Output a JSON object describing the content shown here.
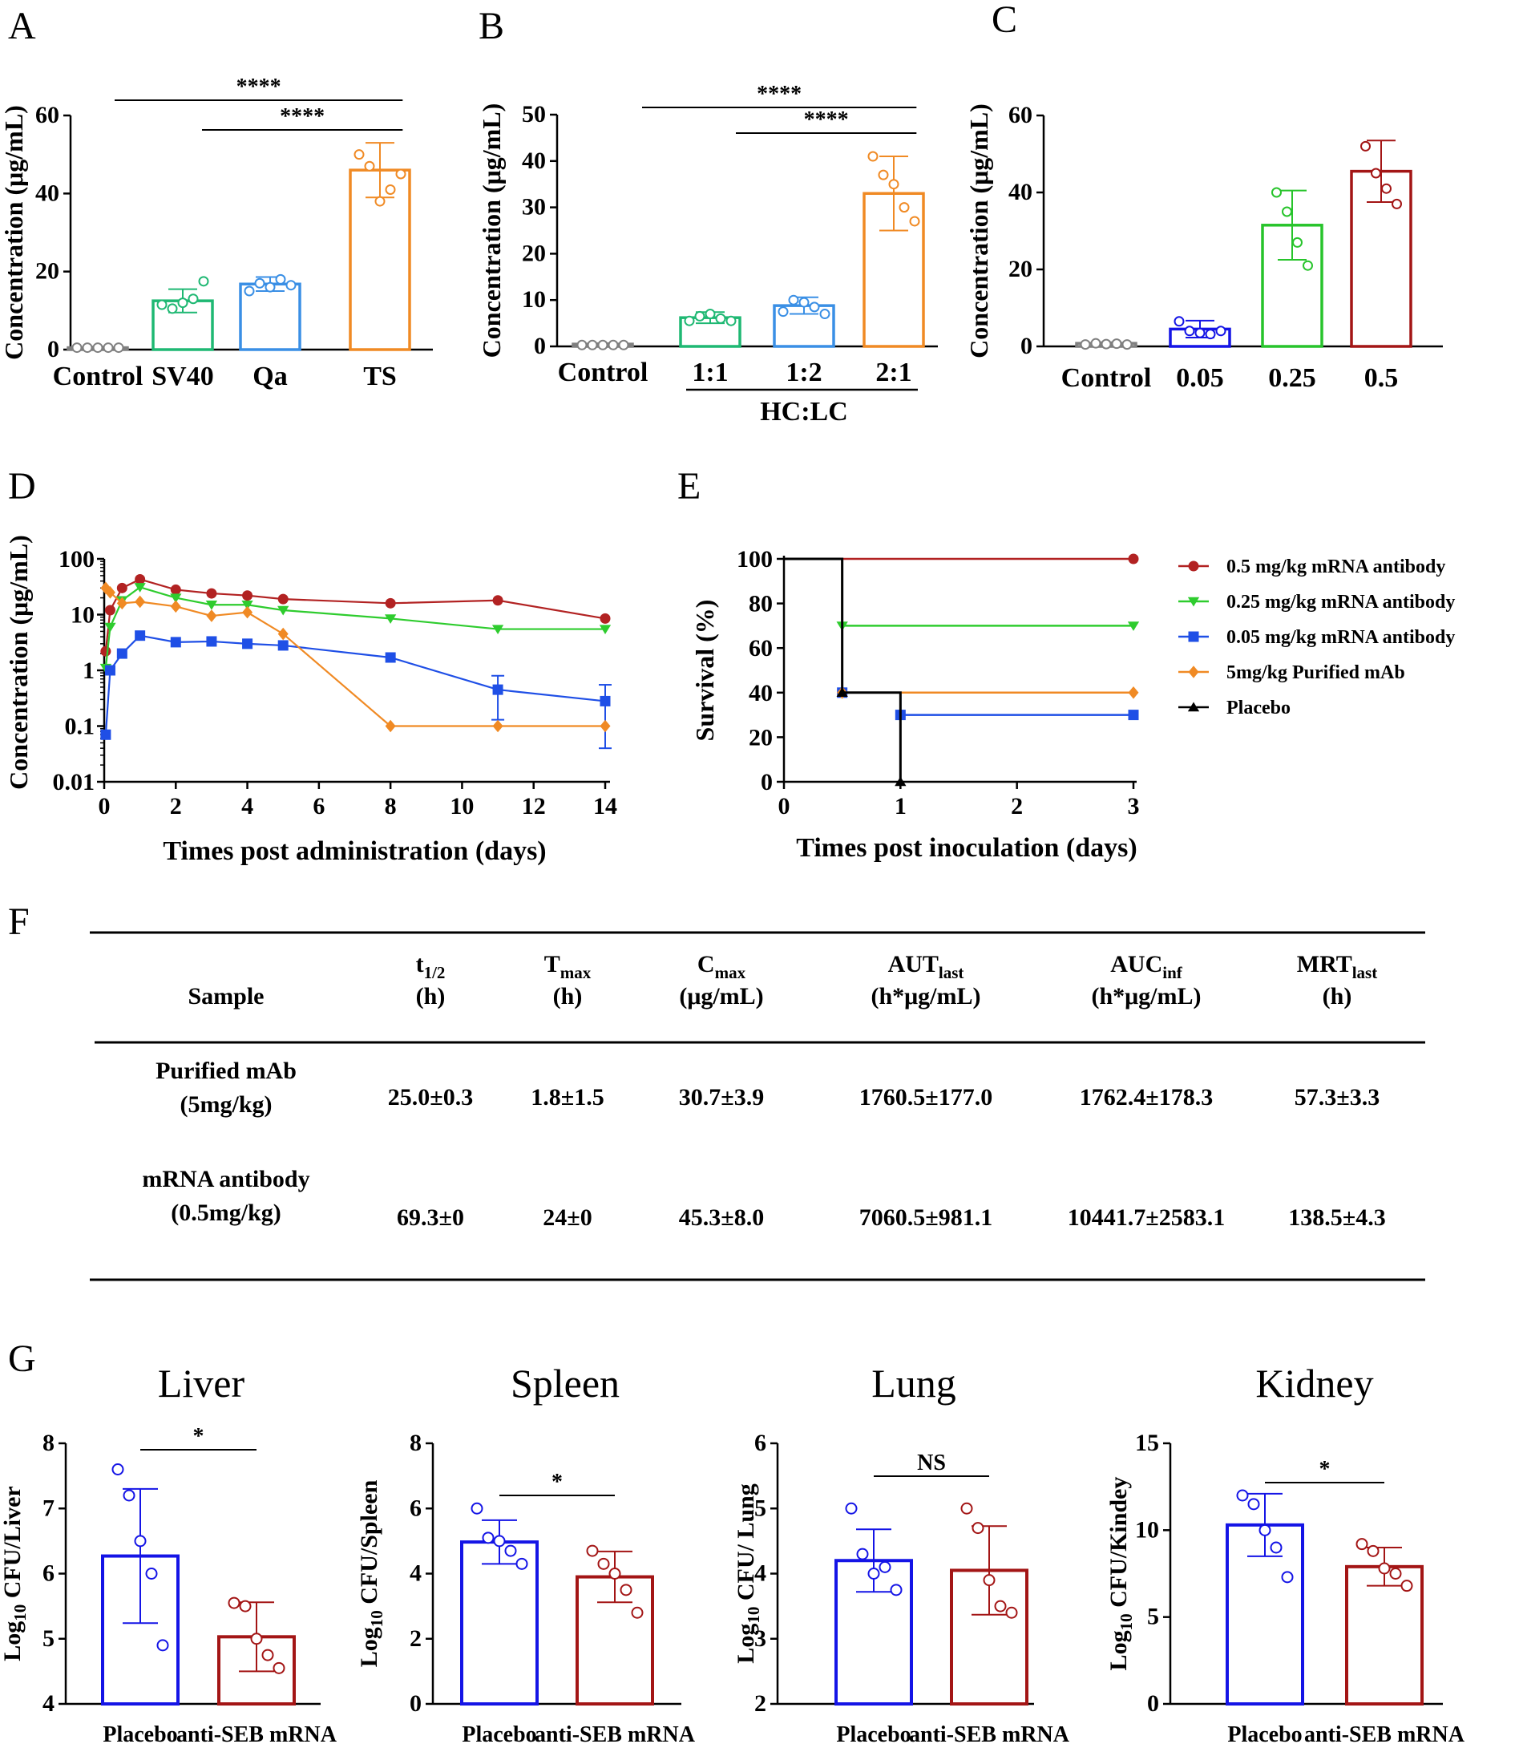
{
  "panel_letters": [
    "A",
    "B",
    "C",
    "D",
    "E",
    "F",
    "G"
  ],
  "colors": {
    "axis": "#000000",
    "gray": "#7f7f7f",
    "green": "#1fb873",
    "blue": "#3a8fe5",
    "orange": "#f08a24",
    "blue_dark": "#1414e6",
    "green_bright": "#27c42b",
    "red_dark": "#a31515",
    "red_line": "#b22222",
    "green_line": "#2ecc2e",
    "blue_line": "#1f4fe6",
    "black": "#000000"
  },
  "chart_data": [
    {
      "id": "A",
      "type": "bar",
      "ylabel": "Concentration (μg/mL)",
      "ylim": [
        0,
        60
      ],
      "yticks": [
        0,
        20,
        40,
        60
      ],
      "categories": [
        "Control",
        "SV40",
        "Qa",
        "TS"
      ],
      "values": [
        0.5,
        12.5,
        16.8,
        46
      ],
      "errors": [
        0.3,
        3,
        1.8,
        7
      ],
      "points": [
        [
          0.5,
          0.5,
          0.5,
          0.5,
          0.5
        ],
        [
          11.5,
          10.5,
          12,
          13,
          17.5
        ],
        [
          15,
          17,
          16,
          18,
          16.5
        ],
        [
          50,
          47,
          38,
          41,
          45
        ]
      ],
      "colors": [
        "#7f7f7f",
        "#1fb873",
        "#3a8fe5",
        "#f08a24"
      ],
      "sig": [
        {
          "from": 1,
          "to": 3,
          "label": "****"
        },
        {
          "from": 2,
          "to": 3,
          "label": "****"
        }
      ]
    },
    {
      "id": "B",
      "type": "bar",
      "ylabel": "Concentration (μg/mL)",
      "ylim": [
        0,
        50
      ],
      "yticks": [
        0,
        10,
        20,
        30,
        40,
        50
      ],
      "categories": [
        "Control",
        "1:1",
        "1:2",
        "2:1"
      ],
      "values": [
        0.5,
        6.2,
        8.8,
        33
      ],
      "errors": [
        0.2,
        1.2,
        1.8,
        8
      ],
      "points": [
        [
          0.3,
          0.3,
          0.3,
          0.3,
          0.3
        ],
        [
          5.5,
          6.5,
          7,
          6,
          5.5
        ],
        [
          7.5,
          10,
          9.5,
          8.5,
          7
        ],
        [
          41,
          37,
          35,
          30,
          27
        ]
      ],
      "colors": [
        "#7f7f7f",
        "#1fb873",
        "#3a8fe5",
        "#f08a24"
      ],
      "group_label": "HC:LC",
      "sig": [
        {
          "from": 1,
          "to": 3,
          "label": "****"
        },
        {
          "from": 2,
          "to": 3,
          "label": "****"
        }
      ]
    },
    {
      "id": "C",
      "type": "bar",
      "ylabel": "Concentration (μg/mL)",
      "ylim": [
        0,
        60
      ],
      "yticks": [
        0,
        20,
        40,
        60
      ],
      "categories": [
        "Control",
        "0.05",
        "0.25",
        "0.5"
      ],
      "values": [
        0.8,
        4.5,
        31.5,
        45.5
      ],
      "errors": [
        0.3,
        2.2,
        9,
        8
      ],
      "points": [
        [
          0.5,
          0.8,
          0.6,
          0.7,
          0.5
        ],
        [
          6.5,
          4,
          3.5,
          3.2,
          4
        ],
        [
          40,
          35,
          27,
          21
        ],
        [
          52,
          45,
          41,
          37
        ]
      ],
      "colors": [
        "#7f7f7f",
        "#1414e6",
        "#27c42b",
        "#a31515"
      ]
    },
    {
      "id": "D",
      "type": "line",
      "yscale": "log",
      "xlabel": "Times post administration (days)",
      "ylabel": "Concentration (μg/mL)",
      "xlim": [
        0,
        14
      ],
      "xticks": [
        0,
        2,
        4,
        6,
        8,
        10,
        12,
        14
      ],
      "ylim": [
        0.01,
        100
      ],
      "yticks": [
        0.01,
        0.1,
        1,
        10,
        100
      ],
      "ytick_labels": [
        "0.01",
        "0.1",
        "1",
        "10",
        "100"
      ],
      "series": [
        {
          "name": "0.5 mg/kg mRNA antibody",
          "color": "#b22222",
          "marker": "circle",
          "x": [
            0.042,
            0.167,
            0.5,
            1,
            2,
            3,
            4,
            5,
            8,
            11,
            14
          ],
          "y": [
            2.2,
            12,
            30,
            43,
            28,
            24,
            22,
            19,
            16,
            18,
            8.5
          ]
        },
        {
          "name": "0.25 mg/kg mRNA antibody",
          "color": "#2ecc2e",
          "marker": "triangle-down",
          "x": [
            0.042,
            0.167,
            0.5,
            1,
            2,
            3,
            4,
            5,
            8,
            11,
            14
          ],
          "y": [
            1.1,
            6,
            18,
            31,
            20,
            15,
            15,
            12,
            8.5,
            5.5,
            5.5
          ]
        },
        {
          "name": "0.05 mg/kg mRNA antibody",
          "color": "#1f4fe6",
          "marker": "square",
          "x": [
            0.042,
            0.167,
            0.5,
            1,
            2,
            3,
            4,
            5,
            8,
            11,
            14
          ],
          "y": [
            0.07,
            1,
            2,
            4.2,
            3.2,
            3.3,
            3,
            2.8,
            1.7,
            0.45,
            0.28
          ]
        },
        {
          "name": "5mg/kg Purified mAb",
          "color": "#f08a24",
          "marker": "diamond",
          "x": [
            0.042,
            0.167,
            0.5,
            1,
            2,
            3,
            4,
            5,
            8,
            11,
            14
          ],
          "y": [
            30,
            25,
            16,
            17,
            14,
            9.5,
            11,
            4.5,
            0.1,
            0.1,
            0.1
          ]
        }
      ]
    },
    {
      "id": "E",
      "type": "line",
      "subtype": "step",
      "xlabel": "Times post inoculation (days)",
      "ylabel": "Survival (%)",
      "xlim": [
        0,
        3
      ],
      "xticks": [
        0,
        1,
        2,
        3
      ],
      "ylim": [
        0,
        100
      ],
      "yticks": [
        0,
        20,
        40,
        60,
        80,
        100
      ],
      "series": [
        {
          "name": "0.5 mg/kg mRNA antibody",
          "color": "#b22222",
          "marker": "circle",
          "steps": [
            [
              0,
              100
            ],
            [
              3,
              100
            ]
          ]
        },
        {
          "name": "0.25 mg/kg mRNA antibody",
          "color": "#2ecc2e",
          "marker": "triangle-down",
          "steps": [
            [
              0,
              100
            ],
            [
              0.5,
              70
            ],
            [
              3,
              70
            ]
          ]
        },
        {
          "name": "0.05 mg/kg mRNA antibody",
          "color": "#1f4fe6",
          "marker": "square",
          "steps": [
            [
              0,
              100
            ],
            [
              0.5,
              40
            ],
            [
              1,
              30
            ],
            [
              3,
              30
            ]
          ]
        },
        {
          "name": "5mg/kg Purified mAb",
          "color": "#f08a24",
          "marker": "diamond",
          "steps": [
            [
              0,
              100
            ],
            [
              0.5,
              40
            ],
            [
              3,
              40
            ]
          ]
        },
        {
          "name": "Placebo",
          "color": "#000000",
          "marker": "triangle",
          "steps": [
            [
              0,
              100
            ],
            [
              0.5,
              40
            ],
            [
              1,
              0
            ]
          ]
        }
      ]
    },
    {
      "id": "F",
      "type": "table",
      "columns": [
        {
          "main": "Sample",
          "sub": "",
          "unit": ""
        },
        {
          "main": "t",
          "sub": "1/2",
          "unit": "(h)"
        },
        {
          "main": "T",
          "sub": "max",
          "unit": "(h)"
        },
        {
          "main": "C",
          "sub": "max",
          "unit": "(μg/mL)"
        },
        {
          "main": "AUT",
          "sub": "last",
          "unit": "(h*μg/mL)"
        },
        {
          "main": "AUC",
          "sub": "inf",
          "unit": "(h*μg/mL)"
        },
        {
          "main": "MRT",
          "sub": "last",
          "unit": "(h)"
        }
      ],
      "rows": [
        {
          "sample_line1": "Purified mAb",
          "sample_line2": "(5mg/kg)",
          "values": [
            "25.0±0.3",
            "1.8±1.5",
            "30.7±3.9",
            "1760.5±177.0",
            "1762.4±178.3",
            "57.3±3.3"
          ]
        },
        {
          "sample_line1": "mRNA antibody",
          "sample_line2": "(0.5mg/kg)",
          "values": [
            "69.3±0",
            "24±0",
            "45.3±8.0",
            "7060.5±981.1",
            "10441.7±2583.1",
            "138.5±4.3"
          ]
        }
      ]
    },
    {
      "id": "G1",
      "type": "bar",
      "title": "Liver",
      "ylabel_main": "Log",
      "ylabel_sub": "10",
      "ylabel_rest": " CFU/Liver",
      "ylim": [
        4,
        8
      ],
      "yticks": [
        4,
        5,
        6,
        7,
        8
      ],
      "categories": [
        "Placebo",
        "anti-SEB mRNA"
      ],
      "values": [
        6.27,
        5.03
      ],
      "errors": [
        1.03,
        0.53
      ],
      "points": [
        [
          7.6,
          7.2,
          6.5,
          6.0,
          4.9
        ],
        [
          5.55,
          5.5,
          5.0,
          4.75,
          4.55
        ]
      ],
      "colors": [
        "#1414e6",
        "#a31515"
      ],
      "sig": [
        {
          "from": 0,
          "to": 1,
          "label": "*"
        }
      ]
    },
    {
      "id": "G2",
      "type": "bar",
      "title": "Spleen",
      "ylabel_main": "Log",
      "ylabel_sub": "10",
      "ylabel_rest": " CFU/Spleen",
      "ylim": [
        0,
        8
      ],
      "yticks": [
        0,
        2,
        4,
        6,
        8
      ],
      "categories": [
        "Placebo",
        "anti-SEB mRNA"
      ],
      "values": [
        4.97,
        3.9
      ],
      "errors": [
        0.67,
        0.78
      ],
      "points": [
        [
          6.0,
          5.1,
          5.0,
          4.7,
          4.3
        ],
        [
          4.7,
          4.3,
          4.0,
          3.5,
          2.8
        ]
      ],
      "colors": [
        "#1414e6",
        "#a31515"
      ],
      "sig": [
        {
          "from": 0,
          "to": 1,
          "label": "*"
        }
      ]
    },
    {
      "id": "G3",
      "type": "bar",
      "title": "Lung",
      "ylabel_main": "Log",
      "ylabel_sub": "10",
      "ylabel_rest": " CFU/ Lung",
      "ylim": [
        2,
        6
      ],
      "yticks": [
        2,
        3,
        4,
        5,
        6
      ],
      "categories": [
        "Placebo",
        "anti-SEB mRNA"
      ],
      "values": [
        4.2,
        4.05
      ],
      "errors": [
        0.48,
        0.68
      ],
      "points": [
        [
          5.0,
          4.3,
          4.0,
          4.1,
          3.75
        ],
        [
          5.0,
          4.7,
          3.9,
          3.5,
          3.4
        ]
      ],
      "colors": [
        "#1414e6",
        "#a31515"
      ],
      "sig": [
        {
          "from": 0,
          "to": 1,
          "label": "NS"
        }
      ]
    },
    {
      "id": "G4",
      "type": "bar",
      "title": "Kidney",
      "ylabel_main": "Log",
      "ylabel_sub": "10",
      "ylabel_rest": " CFU/Kindey",
      "ylim": [
        0,
        15
      ],
      "yticks": [
        0,
        5,
        10,
        15
      ],
      "categories": [
        "Placebo",
        "anti-SEB mRNA"
      ],
      "values": [
        10.3,
        7.9
      ],
      "errors": [
        1.8,
        1.1
      ],
      "points": [
        [
          12.0,
          11.5,
          10.0,
          9.0,
          7.3
        ],
        [
          9.2,
          8.8,
          7.8,
          7.5,
          6.8
        ]
      ],
      "colors": [
        "#1414e6",
        "#a31515"
      ],
      "sig": [
        {
          "from": 0,
          "to": 1,
          "label": "*"
        }
      ]
    }
  ]
}
